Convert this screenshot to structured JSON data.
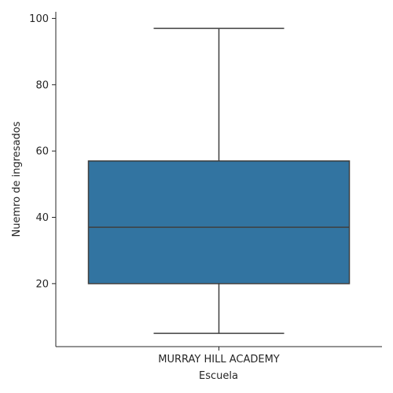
{
  "chart_data": {
    "type": "box",
    "title": "",
    "xlabel": "Escuela",
    "ylabel": "Nuemro de ingresados",
    "categories": [
      "MURRAY HILL ACADEMY"
    ],
    "boxes": [
      {
        "category": "MURRAY HILL ACADEMY",
        "whisker_low": 5,
        "q1": 20,
        "median": 37,
        "q3": 57,
        "whisker_high": 97
      }
    ],
    "yticks": [
      20,
      40,
      60,
      80,
      100
    ],
    "ylim": [
      1,
      102
    ],
    "grid": false,
    "colors": {
      "box_fill": "#3274a1",
      "line": "#3f3f3f",
      "axis": "#262626"
    }
  }
}
